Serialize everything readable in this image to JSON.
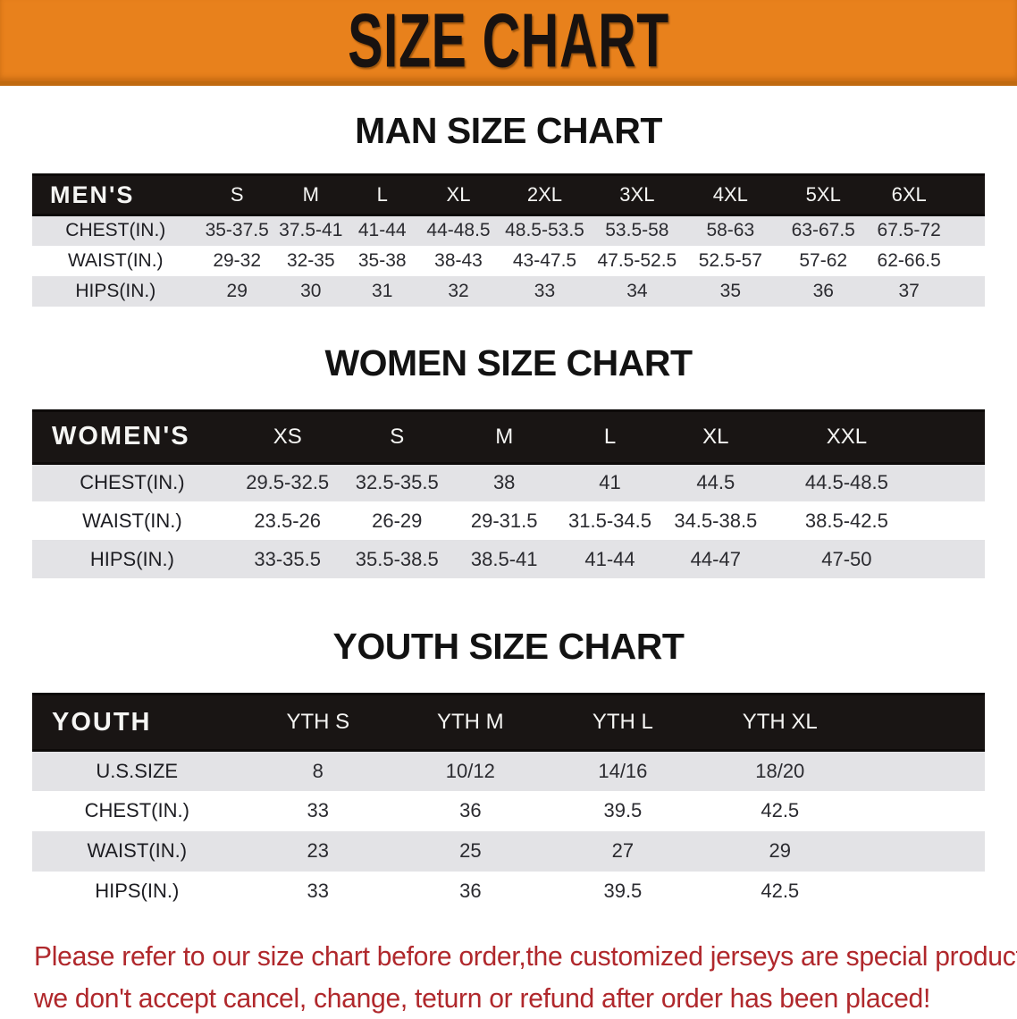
{
  "banner": {
    "title": "SIZE CHART",
    "bg_color": "#e8811c",
    "text_color": "#181210"
  },
  "sections": [
    {
      "key": "mens",
      "title": "MAN SIZE CHART",
      "table": {
        "group_label": "MEN'S",
        "columns": [
          "S",
          "M",
          "L",
          "XL",
          "2XL",
          "3XL",
          "4XL",
          "5XL",
          "6XL"
        ],
        "rows": [
          {
            "label": "CHEST(IN.)",
            "values": [
              "35-37.5",
              "37.5-41",
              "41-44",
              "44-48.5",
              "48.5-53.5",
              "53.5-58",
              "58-63",
              "63-67.5",
              "67.5-72"
            ]
          },
          {
            "label": "WAIST(IN.)",
            "values": [
              "29-32",
              "32-35",
              "35-38",
              "38-43",
              "43-47.5",
              "47.5-52.5",
              "52.5-57",
              "57-62",
              "62-66.5"
            ]
          },
          {
            "label": "HIPS(IN.)",
            "values": [
              "29",
              "30",
              "31",
              "32",
              "33",
              "34",
              "35",
              "36",
              "37"
            ]
          }
        ],
        "shaded_rows": [
          0,
          2
        ]
      }
    },
    {
      "key": "womens",
      "title": "WOMEN SIZE CHART",
      "table": {
        "group_label": "WOMEN'S",
        "columns": [
          "XS",
          "S",
          "M",
          "L",
          "XL",
          "XXL"
        ],
        "rows": [
          {
            "label": "CHEST(IN.)",
            "values": [
              "29.5-32.5",
              "32.5-35.5",
              "38",
              "41",
              "44.5",
              "44.5-48.5"
            ]
          },
          {
            "label": "WAIST(IN.)",
            "values": [
              "23.5-26",
              "26-29",
              "29-31.5",
              "31.5-34.5",
              "34.5-38.5",
              "38.5-42.5"
            ]
          },
          {
            "label": "HIPS(IN.)",
            "values": [
              "33-35.5",
              "35.5-38.5",
              "38.5-41",
              "41-44",
              "44-47",
              "47-50"
            ]
          }
        ],
        "shaded_rows": [
          0,
          2
        ]
      }
    },
    {
      "key": "youth",
      "title": "YOUTH SIZE CHART",
      "table": {
        "group_label": "YOUTH",
        "columns": [
          "YTH S",
          "YTH M",
          "YTH L",
          "YTH XL"
        ],
        "rows": [
          {
            "label": "U.S.SIZE",
            "values": [
              "8",
              "10/12",
              "14/16",
              "18/20"
            ]
          },
          {
            "label": "CHEST(IN.)",
            "values": [
              "33",
              "36",
              "39.5",
              "42.5"
            ]
          },
          {
            "label": "WAIST(IN.)",
            "values": [
              "23",
              "25",
              "27",
              "29"
            ]
          },
          {
            "label": "HIPS(IN.)",
            "values": [
              "33",
              "36",
              "39.5",
              "42.5"
            ]
          }
        ],
        "shaded_rows": [
          0,
          2
        ]
      }
    }
  ],
  "disclaimer": {
    "color": "#b0282c",
    "lines": [
      "Please refer to our size chart before order,the customized jerseys are special products,",
      "we don't accept cancel, change, teturn or refund after order has been placed!"
    ]
  }
}
